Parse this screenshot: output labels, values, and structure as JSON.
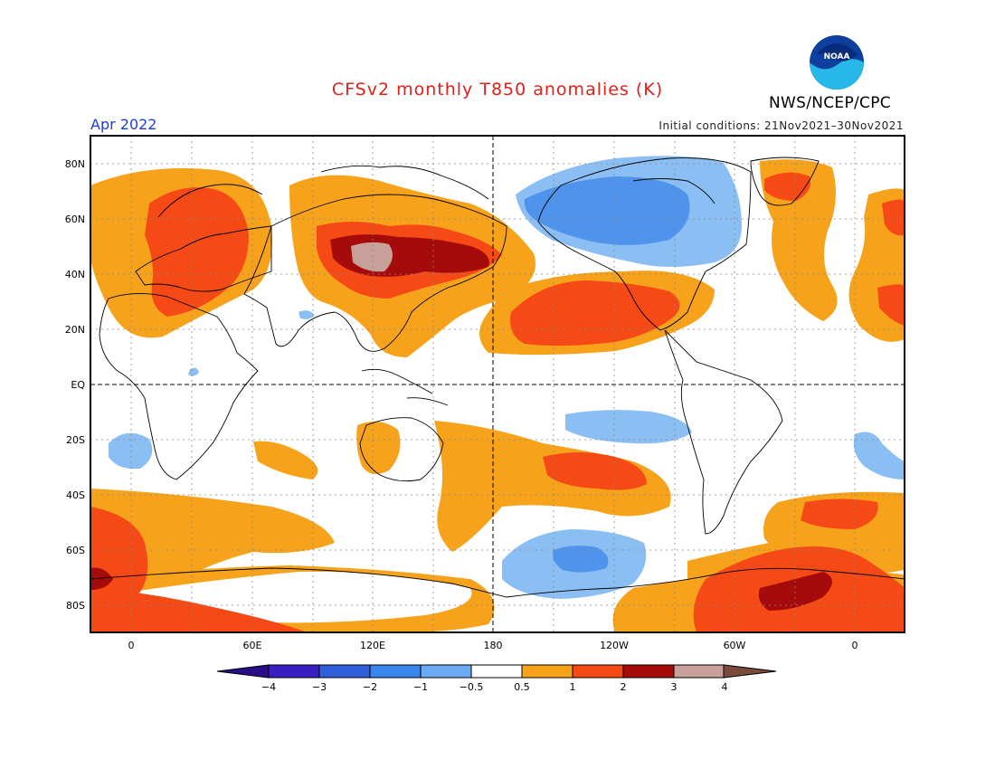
{
  "title": "CFSv2 monthly T850 anomalies (K)",
  "month": "Apr 2022",
  "initial_conditions": "Initial conditions: 21Nov2021–30Nov2021",
  "agency": "NWS/NCEP/CPC",
  "logo_text": "NOAA",
  "colors": {
    "title": "#e0201b",
    "month": "#1f3fd8",
    "neg4": "#2a0d86",
    "neg3": "#4a3ed0",
    "neg2": "#2a6ee0",
    "neg1": "#4f93ec",
    "neg05": "#8bbff4",
    "zero": "#ffffff",
    "pos05": "#f7a21b",
    "pos1": "#f54a15",
    "pos2": "#a60b0b",
    "pos3": "#c8a09a",
    "pos4": "#7a4a3a"
  },
  "lat_labels": [
    "80N",
    "60N",
    "40N",
    "20N",
    "EQ",
    "20S",
    "40S",
    "60S",
    "80S"
  ],
  "lon_labels": [
    "0",
    "60E",
    "120E",
    "180",
    "120W",
    "60W",
    "0"
  ],
  "colorbar": {
    "labels": [
      "−4",
      "−3",
      "−2",
      "−1",
      "−0.5",
      "0.5",
      "1",
      "2",
      "3",
      "4"
    ],
    "colors": [
      "#3a1fc0",
      "#2f5fd8",
      "#3b86ea",
      "#6aaaf0",
      "#ffffff",
      "#f7a21b",
      "#f54a15",
      "#a60b0b",
      "#c8a09a"
    ]
  }
}
